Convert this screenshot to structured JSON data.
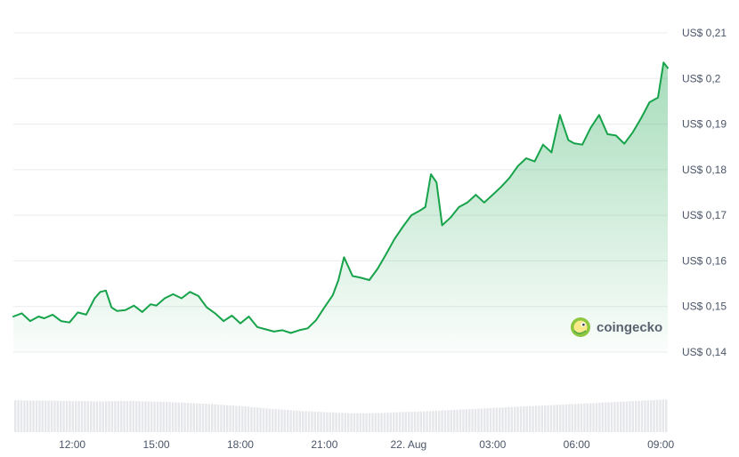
{
  "chart_data": {
    "type": "area",
    "y_axis": {
      "min": 0.14,
      "max": 0.21,
      "ticks": [
        0.21,
        0.2,
        0.19,
        0.18,
        0.17,
        0.16,
        0.15,
        0.14
      ],
      "tick_labels": [
        "US$ 0,21",
        "US$ 0,2",
        "US$ 0,19",
        "US$ 0,18",
        "US$ 0,17",
        "US$ 0,16",
        "US$ 0,15",
        "US$ 0,14"
      ],
      "position": "right"
    },
    "x_axis": {
      "start_hour": 9.9,
      "end_hour": 33.25,
      "ticks": [
        12,
        15,
        18,
        21,
        24,
        27,
        30,
        33
      ],
      "tick_labels": [
        "12:00",
        "15:00",
        "18:00",
        "21:00",
        "22. Aug",
        "03:00",
        "06:00",
        "09:00"
      ]
    },
    "grid": true,
    "line_color": "#16a34a",
    "fill_color": "#16a34a",
    "volume_color": "#e5e7eb",
    "series": [
      {
        "x": [
          9.9,
          10.2,
          10.5,
          10.8,
          11.0,
          11.3,
          11.6,
          11.9,
          12.2,
          12.5,
          12.8,
          13.0,
          13.2,
          13.4,
          13.6,
          13.9,
          14.2,
          14.5,
          14.8,
          15.0,
          15.3,
          15.6,
          15.9,
          16.2,
          16.5,
          16.8,
          17.1,
          17.4,
          17.7,
          18.0,
          18.3,
          18.6,
          18.9,
          19.2,
          19.5,
          19.8,
          20.1,
          20.4,
          20.7,
          21.0,
          21.3,
          21.5,
          21.7,
          22.0,
          22.3,
          22.6,
          22.9,
          23.2,
          23.5,
          23.8,
          24.1,
          24.4,
          24.6,
          24.8,
          25.0,
          25.2,
          25.5,
          25.8,
          26.1,
          26.4,
          26.7,
          27.0,
          27.3,
          27.6,
          27.9,
          28.2,
          28.5,
          28.8,
          29.1,
          29.4,
          29.7,
          29.9,
          30.2,
          30.5,
          30.8,
          31.1,
          31.4,
          31.7,
          32.0,
          32.3,
          32.6,
          32.9,
          33.1,
          33.25
        ],
        "y": [
          0.1478,
          0.1485,
          0.1468,
          0.1478,
          0.1474,
          0.1482,
          0.1468,
          0.1465,
          0.1487,
          0.1482,
          0.1518,
          0.1532,
          0.1535,
          0.1498,
          0.149,
          0.1492,
          0.1502,
          0.1488,
          0.1505,
          0.1502,
          0.1518,
          0.1527,
          0.1518,
          0.1532,
          0.1523,
          0.1498,
          0.1485,
          0.1468,
          0.148,
          0.1463,
          0.1478,
          0.1455,
          0.145,
          0.1445,
          0.1448,
          0.1442,
          0.1448,
          0.1452,
          0.147,
          0.1498,
          0.1525,
          0.1558,
          0.1608,
          0.1567,
          0.1563,
          0.1558,
          0.1583,
          0.1615,
          0.1648,
          0.1675,
          0.17,
          0.171,
          0.1718,
          0.179,
          0.1772,
          0.1678,
          0.1695,
          0.1718,
          0.1728,
          0.1745,
          0.1728,
          0.1745,
          0.1762,
          0.1782,
          0.1808,
          0.1825,
          0.1818,
          0.1855,
          0.1838,
          0.192,
          0.1865,
          0.1858,
          0.1855,
          0.1892,
          0.192,
          0.1878,
          0.1875,
          0.1857,
          0.1882,
          0.1913,
          0.1948,
          0.1958,
          0.2035,
          0.2023
        ]
      }
    ],
    "volume": {
      "values": [
        0.78,
        0.77,
        0.77,
        0.76,
        0.76,
        0.75,
        0.76,
        0.76,
        0.75,
        0.74,
        0.72,
        0.7,
        0.68,
        0.65,
        0.62,
        0.58,
        0.55,
        0.52,
        0.5,
        0.48,
        0.46,
        0.46,
        0.47,
        0.49,
        0.5,
        0.52,
        0.54,
        0.56,
        0.58,
        0.6,
        0.62,
        0.64,
        0.66,
        0.68,
        0.7,
        0.72,
        0.74,
        0.76,
        0.78,
        0.8
      ],
      "max": 1
    },
    "watermark": {
      "text": "coingecko",
      "icon": "gecko-logo-icon",
      "placement": "bottom-right"
    }
  }
}
